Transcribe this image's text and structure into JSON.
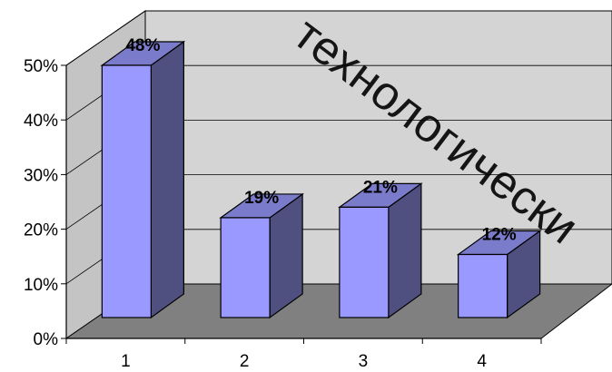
{
  "chart_data": {
    "type": "bar",
    "three_d": true,
    "categories": [
      "1",
      "2",
      "3",
      "4"
    ],
    "values": [
      48,
      19,
      21,
      12
    ],
    "data_labels": [
      "48%",
      "19%",
      "21%",
      "12%"
    ],
    "y_ticks": [
      "0%",
      "10%",
      "20%",
      "30%",
      "40%",
      "50%"
    ],
    "ylim": [
      0,
      50
    ],
    "grid": true,
    "legend": "none",
    "title": "",
    "xlabel": "",
    "ylabel": ""
  },
  "colors": {
    "bar_front": "#9999ff",
    "bar_side": "#4f4f80",
    "bar_top": "#7b7bcc",
    "back_wall": "#d4d4d4",
    "side_wall": "#c4c4c4",
    "floor": "#808080"
  },
  "watermark": "технологически"
}
